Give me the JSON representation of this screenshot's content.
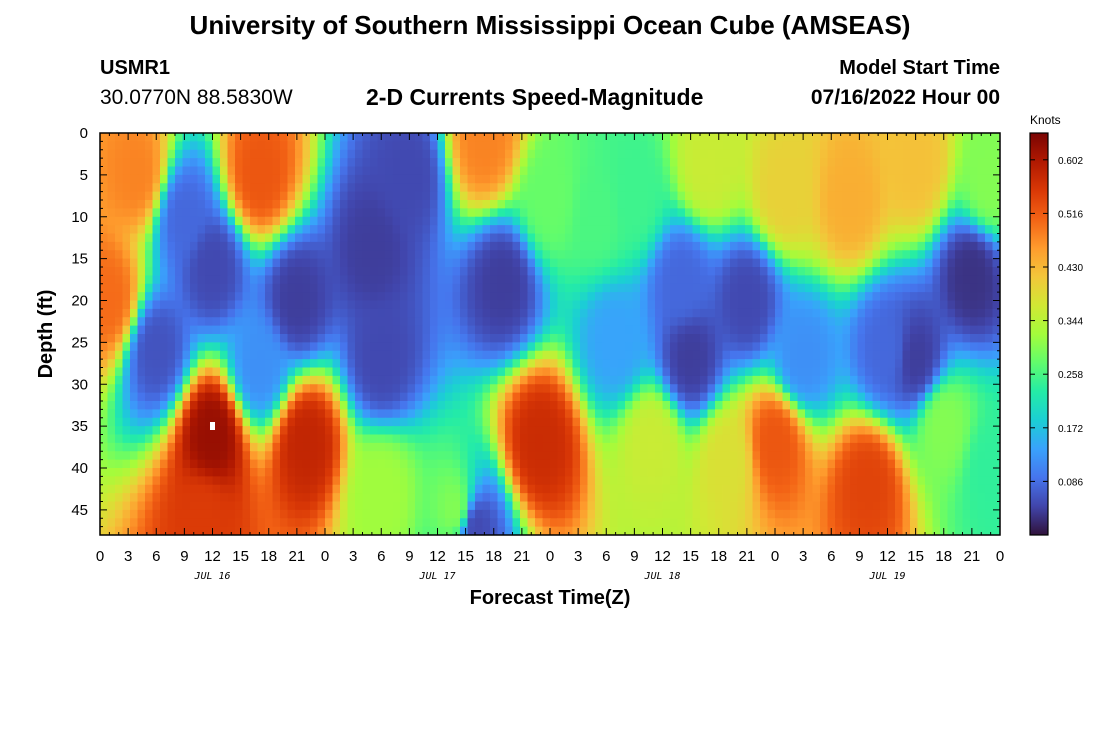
{
  "header": {
    "title": "University of Southern Mississippi Ocean Cube (AMSEAS)",
    "station_id": "USMR1",
    "station_coords": "30.0770N  88.5830W",
    "plot_title": "2-D Currents Speed-Magnitude",
    "model_start_label": "Model Start Time",
    "model_start_value": "07/16/2022 Hour 00"
  },
  "footer": {
    "title": "University of Southern Mississippi Ocean Cube (AMSEAS)"
  },
  "colors": {
    "palette": [
      "#30123b",
      "#4145ab",
      "#4675ed",
      "#39a2fc",
      "#1bcfd4",
      "#24eca6",
      "#61fc6c",
      "#a4fc3b",
      "#d1e834",
      "#f3c63a",
      "#fe9b2d",
      "#f36315",
      "#d93806",
      "#b11901",
      "#7a0403"
    ]
  },
  "chart_data": {
    "type": "heatmap",
    "title": "2-D Currents Speed-Magnitude",
    "xlabel": "Forecast Time(Z)",
    "ylabel": "Depth (ft)",
    "x_hour_range": [
      0,
      96
    ],
    "ylim": [
      0,
      48
    ],
    "x_tick_labels": [
      "0",
      "3",
      "6",
      "9",
      "12",
      "15",
      "18",
      "21",
      "0",
      "3",
      "6",
      "9",
      "12",
      "15",
      "18",
      "21",
      "0",
      "3",
      "6",
      "9",
      "12",
      "15",
      "18",
      "21",
      "0",
      "3",
      "6",
      "9",
      "12",
      "15",
      "18",
      "21",
      "0"
    ],
    "date_labels": [
      {
        "label": "JUL 16",
        "hour": 12
      },
      {
        "label": "JUL 17",
        "hour": 36
      },
      {
        "label": "JUL 18",
        "hour": 60
      },
      {
        "label": "JUL 19",
        "hour": 84
      }
    ],
    "y_ticks": [
      0,
      5,
      10,
      15,
      20,
      25,
      30,
      35,
      40,
      45
    ],
    "colorbar": {
      "title": "Knots",
      "range": [
        0.0,
        0.645
      ],
      "ticks": [
        "0.086",
        "0.172",
        "0.258",
        "0.344",
        "0.430",
        "0.516",
        "0.602"
      ],
      "tick_values": [
        0.086,
        0.172,
        0.258,
        0.344,
        0.43,
        0.516,
        0.602
      ]
    },
    "features": [
      {
        "hour": 1,
        "depth": 20,
        "speed": 0.5
      },
      {
        "hour": 4,
        "depth": 5,
        "speed": 0.48
      },
      {
        "hour": 12,
        "depth": 36,
        "speed": 0.62
      },
      {
        "hour": 9,
        "depth": 10,
        "speed": 0.08
      },
      {
        "hour": 12,
        "depth": 16,
        "speed": 0.05
      },
      {
        "hour": 6,
        "depth": 26,
        "speed": 0.06
      },
      {
        "hour": 11,
        "depth": 46,
        "speed": 0.55
      },
      {
        "hour": 17,
        "depth": 5,
        "speed": 0.52
      },
      {
        "hour": 17,
        "depth": 28,
        "speed": 0.12
      },
      {
        "hour": 21,
        "depth": 20,
        "speed": 0.04
      },
      {
        "hour": 22,
        "depth": 37,
        "speed": 0.58
      },
      {
        "hour": 29,
        "depth": 14,
        "speed": 0.04
      },
      {
        "hour": 33,
        "depth": 5,
        "speed": 0.05
      },
      {
        "hour": 30,
        "depth": 27,
        "speed": 0.05
      },
      {
        "hour": 30,
        "depth": 43,
        "speed": 0.32
      },
      {
        "hour": 38,
        "depth": 45,
        "speed": 0.3
      },
      {
        "hour": 41,
        "depth": 1,
        "speed": 0.48
      },
      {
        "hour": 43,
        "depth": 18,
        "speed": 0.04
      },
      {
        "hour": 40,
        "depth": 47,
        "speed": 0.05
      },
      {
        "hour": 47,
        "depth": 37,
        "speed": 0.57
      },
      {
        "hour": 48,
        "depth": 8,
        "speed": 0.28
      },
      {
        "hour": 53,
        "depth": 10,
        "speed": 0.26
      },
      {
        "hour": 55,
        "depth": 25,
        "speed": 0.14
      },
      {
        "hour": 57,
        "depth": 8,
        "speed": 0.25
      },
      {
        "hour": 59,
        "depth": 37,
        "speed": 0.36
      },
      {
        "hour": 62,
        "depth": 18,
        "speed": 0.08
      },
      {
        "hour": 63,
        "depth": 27,
        "speed": 0.04
      },
      {
        "hour": 65,
        "depth": 4,
        "speed": 0.36
      },
      {
        "hour": 67,
        "depth": 39,
        "speed": 0.38
      },
      {
        "hour": 69,
        "depth": 20,
        "speed": 0.05
      },
      {
        "hour": 73,
        "depth": 7,
        "speed": 0.4
      },
      {
        "hour": 72,
        "depth": 37,
        "speed": 0.52
      },
      {
        "hour": 75,
        "depth": 27,
        "speed": 0.12
      },
      {
        "hour": 80,
        "depth": 8,
        "speed": 0.44
      },
      {
        "hour": 82,
        "depth": 42,
        "speed": 0.54
      },
      {
        "hour": 84,
        "depth": 26,
        "speed": 0.08
      },
      {
        "hour": 87,
        "depth": 4,
        "speed": 0.42
      },
      {
        "hour": 87,
        "depth": 27,
        "speed": 0.04
      },
      {
        "hour": 90,
        "depth": 35,
        "speed": 0.3
      },
      {
        "hour": 93,
        "depth": 17,
        "speed": 0.03
      },
      {
        "hour": 95,
        "depth": 6,
        "speed": 0.3
      },
      {
        "hour": 95,
        "depth": 40,
        "speed": 0.24
      }
    ]
  }
}
